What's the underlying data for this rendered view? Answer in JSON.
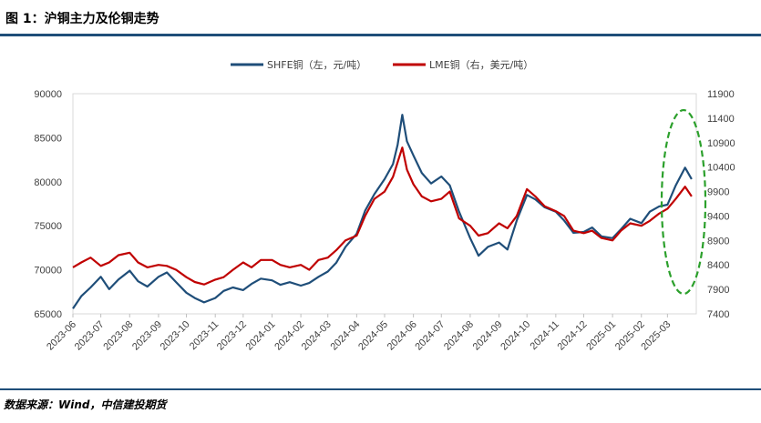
{
  "figure": {
    "title": "图 1：沪铜主力及伦铜走势",
    "source": "数据来源：Wind，中信建投期货"
  },
  "colors": {
    "shfe": "#1f4e79",
    "lme": "#c00000",
    "highlight": "#2ca02c",
    "rule": "#1f4e79",
    "grid": "#d9d9d9"
  },
  "chart_data": {
    "type": "line",
    "legend_position": "top-center",
    "grid": false,
    "x": [
      "2023-06",
      "2023-07",
      "2023-08",
      "2023-09",
      "2023-10",
      "2023-11",
      "2023-12",
      "2024-01",
      "2024-02",
      "2024-03",
      "2024-04",
      "2024-05",
      "2024-06",
      "2024-07",
      "2024-08",
      "2024-09",
      "2024-10",
      "2024-11",
      "2024-12",
      "2025-01",
      "2025-02",
      "2025-03"
    ],
    "x_tick_labels": [
      "2023-06",
      "2023-07",
      "2023-08",
      "2023-09",
      "2023-10",
      "2023-11",
      "2023-12",
      "2024-01",
      "2024-02",
      "2024-03",
      "2024-04",
      "2024-05",
      "2024-06",
      "2024-07",
      "2024-08",
      "2024-09",
      "2024-10",
      "2024-11",
      "2024-12",
      "2025-01",
      "2025-02",
      "2025-03"
    ],
    "y_left": {
      "range": [
        65000,
        90000
      ],
      "ticks": [
        "65000",
        "70000",
        "75000",
        "80000",
        "85000",
        "90000"
      ]
    },
    "y_right": {
      "range": [
        7400,
        11900
      ],
      "ticks": [
        "7400",
        "7900",
        "8400",
        "8900",
        "9400",
        "9900",
        "10400",
        "10900",
        "11400",
        "11900"
      ]
    },
    "series": [
      {
        "name": "SHFE铜（左，元/吨）",
        "axis": "left",
        "points": [
          [
            "2023-06-01",
            65600
          ],
          [
            "2023-06-10",
            67000
          ],
          [
            "2023-06-20",
            68000
          ],
          [
            "2023-07-01",
            69200
          ],
          [
            "2023-07-10",
            67800
          ],
          [
            "2023-07-20",
            68900
          ],
          [
            "2023-08-01",
            69900
          ],
          [
            "2023-08-10",
            68700
          ],
          [
            "2023-08-20",
            68100
          ],
          [
            "2023-09-01",
            69200
          ],
          [
            "2023-09-10",
            69700
          ],
          [
            "2023-09-20",
            68600
          ],
          [
            "2023-10-01",
            67400
          ],
          [
            "2023-10-10",
            66800
          ],
          [
            "2023-10-20",
            66300
          ],
          [
            "2023-11-01",
            66800
          ],
          [
            "2023-11-10",
            67600
          ],
          [
            "2023-11-20",
            68000
          ],
          [
            "2023-12-01",
            67700
          ],
          [
            "2023-12-10",
            68400
          ],
          [
            "2023-12-20",
            69000
          ],
          [
            "2024-01-01",
            68800
          ],
          [
            "2024-01-10",
            68300
          ],
          [
            "2024-01-20",
            68600
          ],
          [
            "2024-02-01",
            68200
          ],
          [
            "2024-02-10",
            68500
          ],
          [
            "2024-02-20",
            69200
          ],
          [
            "2024-03-01",
            69800
          ],
          [
            "2024-03-10",
            70800
          ],
          [
            "2024-03-20",
            72600
          ],
          [
            "2024-04-01",
            74100
          ],
          [
            "2024-04-10",
            76700
          ],
          [
            "2024-04-20",
            78600
          ],
          [
            "2024-05-01",
            80300
          ],
          [
            "2024-05-10",
            82000
          ],
          [
            "2024-05-15",
            84200
          ],
          [
            "2024-05-20",
            87600
          ],
          [
            "2024-05-25",
            84600
          ],
          [
            "2024-06-01",
            83000
          ],
          [
            "2024-06-10",
            81000
          ],
          [
            "2024-06-20",
            79800
          ],
          [
            "2024-07-01",
            80600
          ],
          [
            "2024-07-10",
            79600
          ],
          [
            "2024-07-20",
            76600
          ],
          [
            "2024-08-01",
            73600
          ],
          [
            "2024-08-10",
            71600
          ],
          [
            "2024-08-20",
            72600
          ],
          [
            "2024-09-01",
            73100
          ],
          [
            "2024-09-10",
            72300
          ],
          [
            "2024-09-20",
            75600
          ],
          [
            "2024-10-01",
            78500
          ],
          [
            "2024-10-10",
            78000
          ],
          [
            "2024-10-20",
            77100
          ],
          [
            "2024-11-01",
            76600
          ],
          [
            "2024-11-10",
            75600
          ],
          [
            "2024-11-20",
            74200
          ],
          [
            "2024-12-01",
            74300
          ],
          [
            "2024-12-10",
            74800
          ],
          [
            "2024-12-20",
            73800
          ],
          [
            "2025-01-01",
            73600
          ],
          [
            "2025-01-10",
            74600
          ],
          [
            "2025-01-20",
            75800
          ],
          [
            "2025-02-01",
            75300
          ],
          [
            "2025-02-10",
            76600
          ],
          [
            "2025-02-20",
            77200
          ],
          [
            "2025-03-01",
            77400
          ],
          [
            "2025-03-10",
            79600
          ],
          [
            "2025-03-20",
            81600
          ],
          [
            "2025-03-27",
            80300
          ]
        ]
      },
      {
        "name": "LME铜（右，美元/吨）",
        "axis": "right",
        "points": [
          [
            "2023-06-01",
            8350
          ],
          [
            "2023-06-10",
            8450
          ],
          [
            "2023-06-20",
            8550
          ],
          [
            "2023-07-01",
            8380
          ],
          [
            "2023-07-10",
            8450
          ],
          [
            "2023-07-20",
            8600
          ],
          [
            "2023-08-01",
            8650
          ],
          [
            "2023-08-10",
            8450
          ],
          [
            "2023-08-20",
            8350
          ],
          [
            "2023-09-01",
            8400
          ],
          [
            "2023-09-10",
            8380
          ],
          [
            "2023-09-20",
            8300
          ],
          [
            "2023-10-01",
            8150
          ],
          [
            "2023-10-10",
            8050
          ],
          [
            "2023-10-20",
            8000
          ],
          [
            "2023-11-01",
            8100
          ],
          [
            "2023-11-10",
            8150
          ],
          [
            "2023-11-20",
            8300
          ],
          [
            "2023-12-01",
            8450
          ],
          [
            "2023-12-10",
            8350
          ],
          [
            "2023-12-20",
            8500
          ],
          [
            "2024-01-01",
            8500
          ],
          [
            "2024-01-10",
            8400
          ],
          [
            "2024-01-20",
            8350
          ],
          [
            "2024-02-01",
            8400
          ],
          [
            "2024-02-10",
            8300
          ],
          [
            "2024-02-20",
            8500
          ],
          [
            "2024-03-01",
            8550
          ],
          [
            "2024-03-10",
            8700
          ],
          [
            "2024-03-20",
            8900
          ],
          [
            "2024-04-01",
            9000
          ],
          [
            "2024-04-10",
            9400
          ],
          [
            "2024-04-20",
            9750
          ],
          [
            "2024-05-01",
            9900
          ],
          [
            "2024-05-10",
            10200
          ],
          [
            "2024-05-15",
            10500
          ],
          [
            "2024-05-20",
            10800
          ],
          [
            "2024-05-25",
            10350
          ],
          [
            "2024-06-01",
            10050
          ],
          [
            "2024-06-10",
            9800
          ],
          [
            "2024-06-20",
            9700
          ],
          [
            "2024-07-01",
            9750
          ],
          [
            "2024-07-10",
            9900
          ],
          [
            "2024-07-20",
            9350
          ],
          [
            "2024-08-01",
            9200
          ],
          [
            "2024-08-10",
            9000
          ],
          [
            "2024-08-20",
            9050
          ],
          [
            "2024-09-01",
            9250
          ],
          [
            "2024-09-10",
            9150
          ],
          [
            "2024-09-20",
            9400
          ],
          [
            "2024-10-01",
            9950
          ],
          [
            "2024-10-10",
            9800
          ],
          [
            "2024-10-20",
            9600
          ],
          [
            "2024-11-01",
            9500
          ],
          [
            "2024-11-10",
            9400
          ],
          [
            "2024-11-20",
            9100
          ],
          [
            "2024-12-01",
            9050
          ],
          [
            "2024-12-10",
            9100
          ],
          [
            "2024-12-20",
            8950
          ],
          [
            "2025-01-01",
            8900
          ],
          [
            "2025-01-10",
            9100
          ],
          [
            "2025-01-20",
            9250
          ],
          [
            "2025-02-01",
            9200
          ],
          [
            "2025-02-10",
            9300
          ],
          [
            "2025-02-20",
            9450
          ],
          [
            "2025-03-01",
            9550
          ],
          [
            "2025-03-10",
            9750
          ],
          [
            "2025-03-20",
            10000
          ],
          [
            "2025-03-27",
            9800
          ]
        ]
      }
    ]
  }
}
